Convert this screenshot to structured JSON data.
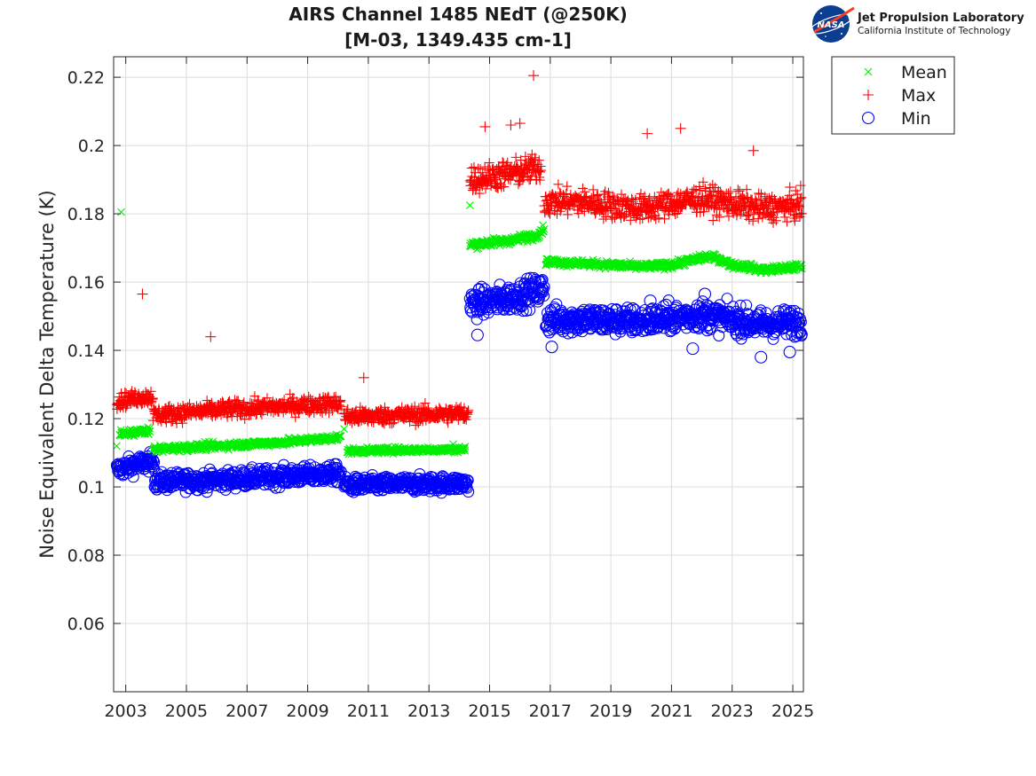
{
  "logo": {
    "nasa_text": "NASA",
    "lab_name": "Jet Propulsion Laboratory",
    "institution": "California Institute of Technology"
  },
  "chart_data": {
    "type": "scatter",
    "title": [
      "AIRS Channel 1485 NEdT (@250K)",
      "[M-03, 1349.435 cm-1]"
    ],
    "xlabel": "",
    "ylabel": "Noise Equivalent Delta Temperature (K)",
    "xlim": [
      2002.6,
      2025.35
    ],
    "ylim": [
      0.04,
      0.226
    ],
    "xticks": [
      2003,
      2005,
      2007,
      2009,
      2011,
      2013,
      2015,
      2017,
      2019,
      2021,
      2023,
      2025
    ],
    "xtick_labels": [
      "2003",
      "2005",
      "2007",
      "2009",
      "2011",
      "2013",
      "2015",
      "2017",
      "2019",
      "2021",
      "2023",
      "2025"
    ],
    "yticks": [
      0.06,
      0.08,
      0.1,
      0.12,
      0.14,
      0.16,
      0.18,
      0.2,
      0.22
    ],
    "ytick_labels": [
      "0.06",
      "0.08",
      "0.1",
      "0.12",
      "0.14",
      "0.16",
      "0.18",
      "0.2",
      "0.22"
    ],
    "grid": true,
    "legend_position": "outside-top-right",
    "series": [
      {
        "name": "Mean",
        "marker": "x",
        "color": "#00ee00",
        "segments": [
          {
            "x": [
              2002.8,
              2003.3,
              2003.8
            ],
            "y": [
              0.1155,
              0.116,
              0.1165
            ],
            "noise": 0.0007
          },
          {
            "x": [
              2003.9,
              2006.0,
              2008.0,
              2010.1
            ],
            "y": [
              0.111,
              0.112,
              0.113,
              0.1145
            ],
            "noise": 0.0007
          },
          {
            "x": [
              2010.3,
              2012.0,
              2014.2
            ],
            "y": [
              0.1105,
              0.1108,
              0.111
            ],
            "noise": 0.0006
          },
          {
            "x": [
              2014.35,
              2015.5,
              2016.5,
              2016.8
            ],
            "y": [
              0.171,
              0.172,
              0.1735,
              0.1755
            ],
            "noise": 0.0008
          },
          {
            "x": [
              2016.85,
              2018.0,
              2020.0,
              2021.0,
              2022.2,
              2022.5,
              2023.0,
              2023.5,
              2024.0,
              2025.3
            ],
            "y": [
              0.166,
              0.1655,
              0.1645,
              0.165,
              0.1675,
              0.167,
              0.165,
              0.1645,
              0.1635,
              0.1645
            ],
            "noise": 0.0007
          }
        ],
        "outliers": [
          [
            2002.85,
            0.1805
          ],
          [
            2002.7,
            0.112
          ],
          [
            2010.2,
            0.117
          ],
          [
            2014.35,
            0.1825
          ],
          [
            2013.8,
            0.1125
          ]
        ]
      },
      {
        "name": "Max",
        "marker": "+",
        "color": "#ff0000",
        "segments": [
          {
            "x": [
              2002.7,
              2003.3,
              2003.9
            ],
            "y": [
              0.125,
              0.126,
              0.1265
            ],
            "noise": 0.0015
          },
          {
            "x": [
              2003.9,
              2006.0,
              2008.0,
              2010.1
            ],
            "y": [
              0.121,
              0.1225,
              0.1235,
              0.1245
            ],
            "noise": 0.0017
          },
          {
            "x": [
              2010.2,
              2012.0,
              2014.3
            ],
            "y": [
              0.1205,
              0.121,
              0.1215
            ],
            "noise": 0.0017
          },
          {
            "x": [
              2014.35,
              2015.5,
              2016.7
            ],
            "y": [
              0.19,
              0.1915,
              0.1935
            ],
            "noise": 0.0028
          },
          {
            "x": [
              2016.8,
              2018.0,
              2020.0,
              2022.0,
              2024.0,
              2025.3
            ],
            "y": [
              0.1835,
              0.1835,
              0.1815,
              0.1845,
              0.1815,
              0.1825
            ],
            "noise": 0.0027
          }
        ],
        "outliers": [
          [
            2003.55,
            0.1565
          ],
          [
            2005.8,
            0.144
          ],
          [
            2010.85,
            0.132
          ],
          [
            2016.45,
            0.2205
          ],
          [
            2020.2,
            0.2035
          ],
          [
            2021.3,
            0.205
          ],
          [
            2023.7,
            0.1985
          ],
          [
            2014.85,
            0.2055
          ],
          [
            2016.0,
            0.2065
          ],
          [
            2015.7,
            0.206
          ]
        ]
      },
      {
        "name": "Min",
        "marker": "o",
        "color": "#0000ff",
        "segments": [
          {
            "x": [
              2002.7,
              2003.3,
              2003.95
            ],
            "y": [
              0.105,
              0.1065,
              0.1075
            ],
            "noise": 0.0018
          },
          {
            "x": [
              2003.95,
              2006.0,
              2008.0,
              2010.1
            ],
            "y": [
              0.1015,
              0.102,
              0.103,
              0.104
            ],
            "noise": 0.0018
          },
          {
            "x": [
              2010.2,
              2012.0,
              2014.3
            ],
            "y": [
              0.1005,
              0.1008,
              0.101
            ],
            "noise": 0.0016
          },
          {
            "x": [
              2014.35,
              2015.5,
              2016.8
            ],
            "y": [
              0.1535,
              0.155,
              0.158
            ],
            "noise": 0.0028
          },
          {
            "x": [
              2016.85,
              2018.0,
              2020.0,
              2022.0,
              2024.0,
              2025.3
            ],
            "y": [
              0.149,
              0.149,
              0.1485,
              0.1505,
              0.1475,
              0.1485
            ],
            "noise": 0.0028
          }
        ],
        "outliers": [
          [
            2023.95,
            0.138
          ],
          [
            2014.6,
            0.1445
          ],
          [
            2017.05,
            0.141
          ],
          [
            2021.7,
            0.1405
          ],
          [
            2024.9,
            0.1395
          ],
          [
            2020.3,
            0.1545
          ],
          [
            2022.1,
            0.1565
          ]
        ]
      }
    ]
  }
}
